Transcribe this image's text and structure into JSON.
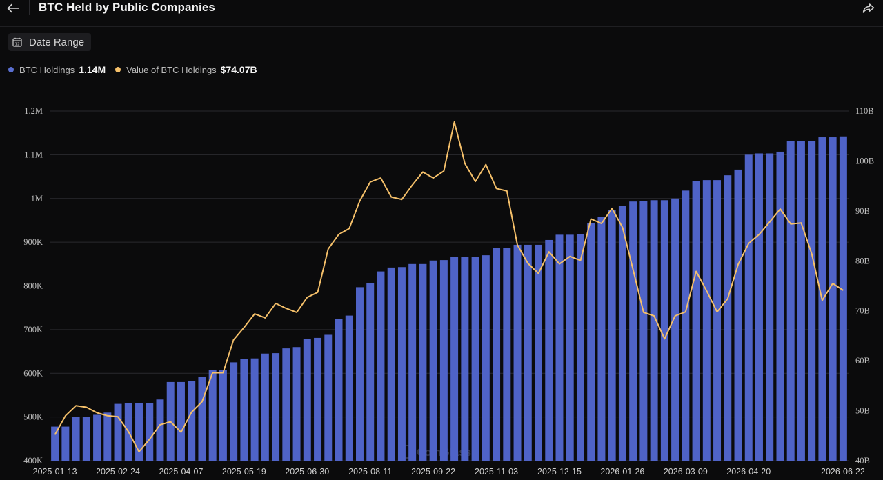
{
  "header": {
    "title": "BTC Held by Public Companies",
    "back_icon": "arrow-left-icon",
    "share_icon": "share-icon"
  },
  "controls": {
    "date_range_label": "Date Range",
    "date_range_icon": "calendar-icon"
  },
  "legend": {
    "items": [
      {
        "name": "BTC Holdings",
        "value": "1.14M",
        "color": "#5a6fd1"
      },
      {
        "name": "Value of BTC Holdings",
        "value": "$74.07B",
        "color": "#f5c06a"
      }
    ]
  },
  "colors": {
    "bar": "#4f63c7",
    "line": "#f5c06a",
    "grid": "#2a2a2e",
    "background": "#0b0b0c"
  },
  "chart_data": {
    "type": "bar+line",
    "x_tick_labels": [
      "2025-01-13",
      "2025-02-24",
      "2025-04-07",
      "2025-05-19",
      "2025-06-30",
      "2025-08-11",
      "2025-09-22",
      "2025-11-03",
      "2025-12-15",
      "2026-01-26",
      "2026-03-09",
      "2026-04-20",
      "2026-06-22"
    ],
    "y_left": {
      "min": 400000,
      "max": 1200000,
      "ticks": [
        400000,
        500000,
        600000,
        700000,
        800000,
        900000,
        1000000,
        1100000,
        1200000
      ],
      "tick_labels": [
        "400K",
        "500K",
        "600K",
        "700K",
        "800K",
        "900K",
        "1M",
        "1.1M",
        "1.2M"
      ]
    },
    "y_right": {
      "min": 40,
      "max": 110,
      "ticks": [
        40,
        50,
        60,
        70,
        80,
        90,
        100,
        110
      ],
      "tick_labels": [
        "40B",
        "50B",
        "60B",
        "70B",
        "80B",
        "90B",
        "100B",
        "110B"
      ]
    },
    "grid": true,
    "series": [
      {
        "name": "BTC Holdings",
        "type": "bar",
        "axis": "left",
        "values": [
          478000,
          478000,
          500000,
          500000,
          505000,
          510000,
          530000,
          531000,
          532000,
          532000,
          540000,
          580000,
          580000,
          583000,
          591000,
          607000,
          608000,
          625000,
          632000,
          634000,
          645000,
          646000,
          657000,
          660000,
          678000,
          681000,
          688000,
          725000,
          732000,
          797000,
          806000,
          833000,
          842000,
          843000,
          850000,
          850000,
          858000,
          859000,
          866000,
          866000,
          866000,
          870000,
          887000,
          887000,
          894000,
          894000,
          894000,
          905000,
          917000,
          917000,
          918000,
          943000,
          957000,
          973000,
          983000,
          993000,
          994000,
          996000,
          996000,
          1000000,
          1018000,
          1040000,
          1042000,
          1042000,
          1053000,
          1066000,
          1100000,
          1103000,
          1103000,
          1107000,
          1132000,
          1132000,
          1132000,
          1140000,
          1140000,
          1142000
        ]
      },
      {
        "name": "Value of BTC Holdings",
        "type": "line",
        "axis": "right",
        "values": [
          45.2,
          49.0,
          51.0,
          50.7,
          49.6,
          49.0,
          48.8,
          45.8,
          41.8,
          44.3,
          47.2,
          47.8,
          45.7,
          49.7,
          51.8,
          57.6,
          57.6,
          64.2,
          66.7,
          69.4,
          68.6,
          71.5,
          70.5,
          69.7,
          72.7,
          73.7,
          82.4,
          85.3,
          86.5,
          92.0,
          95.8,
          96.6,
          92.8,
          92.3,
          95.2,
          97.8,
          96.6,
          98.0,
          107.8,
          99.5,
          95.9,
          99.3,
          94.5,
          94.0,
          83.2,
          79.5,
          77.5,
          81.8,
          79.4,
          80.9,
          80.1,
          88.4,
          87.5,
          90.5,
          86.7,
          78.3,
          69.7,
          69.0,
          64.4,
          69.0,
          69.8,
          77.9,
          74.0,
          69.8,
          72.4,
          79.3,
          83.5,
          85.3,
          87.8,
          90.4,
          87.4,
          87.6,
          81.4,
          72.1,
          75.5,
          74.1
        ]
      }
    ]
  },
  "watermark": "CoinGlass"
}
